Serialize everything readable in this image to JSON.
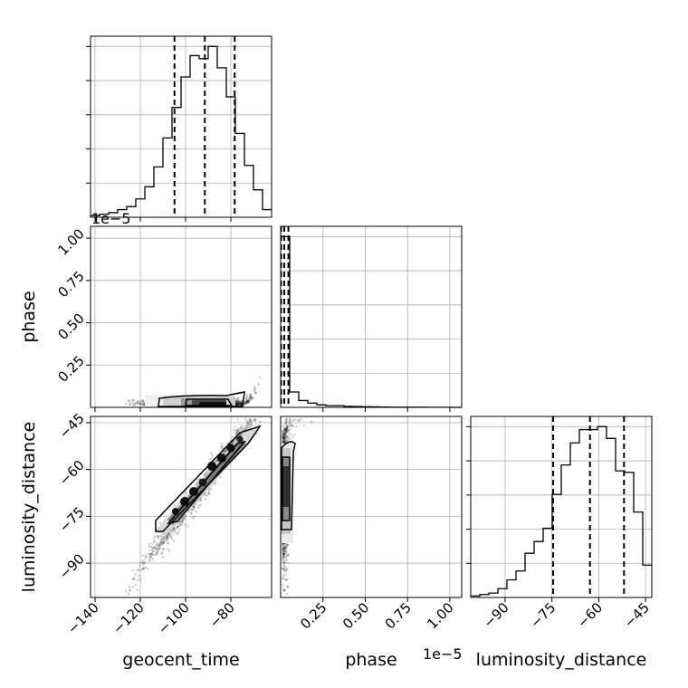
{
  "chart_data": {
    "type": "corner",
    "title": "",
    "parameters": [
      "geocent_time",
      "phase",
      "luminosity_distance"
    ],
    "axis_labels": {
      "geocent_time": "geocent_time",
      "phase": "phase",
      "luminosity_distance": "luminosity_distance"
    },
    "scale_offsets": {
      "phase": "1e−5"
    },
    "ranges": {
      "geocent_time": [
        -142,
        -62
      ],
      "phase_1e-5": [
        0,
        1.07
      ],
      "luminosity_distance": [
        -101,
        -43
      ]
    },
    "ticks": {
      "geocent_time": [
        -140,
        -120,
        -100,
        -80
      ],
      "geocent_time_labels": [
        "−140",
        "−120",
        "−100",
        "−80"
      ],
      "phase_x": [
        0.25,
        0.5,
        0.75,
        1.0
      ],
      "phase_x_labels": [
        "0.25",
        "0.50",
        "0.75",
        "1.00"
      ],
      "phase_y": [
        0.25,
        0.5,
        0.75,
        1.0
      ],
      "phase_y_labels": [
        "0.25",
        "0.50",
        "0.75",
        "1.00"
      ],
      "luminosity_distance": [
        -90,
        -75,
        -60,
        -45
      ],
      "luminosity_distance_labels": [
        "−90",
        "−75",
        "−60",
        "−45"
      ]
    },
    "grid": true,
    "marginals": [
      {
        "parameter": "geocent_time",
        "bin_edges": [
          -142,
          -138,
          -134,
          -130,
          -126,
          -122,
          -118,
          -114,
          -110,
          -106,
          -102,
          -98,
          -94,
          -90,
          -86,
          -82,
          -78,
          -74,
          -70,
          -66,
          -62
        ],
        "counts": [
          1,
          2,
          3,
          5,
          7,
          12,
          20,
          33,
          52,
          72,
          92,
          106,
          104,
          112,
          98,
          79,
          55,
          34,
          18,
          5
        ],
        "quantiles": [
          -104.9,
          -91.5,
          -78.3
        ]
      },
      {
        "parameter": "phase",
        "unit_scale": "1e-5",
        "bin_edges": [
          0,
          0.0535,
          0.107,
          0.1605,
          0.214,
          0.2675,
          0.321,
          0.3745,
          0.428,
          0.4815,
          0.535,
          0.5885,
          0.642,
          0.6955,
          0.749,
          0.8025,
          0.856,
          0.9095,
          0.963,
          1.0165,
          1.07
        ],
        "counts": [
          100,
          9,
          4,
          2.5,
          1.5,
          1,
          1,
          0.6,
          0.5,
          0.4,
          0.3,
          0.2,
          0.15,
          0.1,
          0.1,
          0.1,
          0.05,
          0.05,
          0.05,
          0
        ],
        "quantiles": [
          0.0029,
          0.0215,
          0.0459
        ]
      },
      {
        "parameter": "luminosity_distance",
        "bin_edges": [
          -101,
          -98.1,
          -95.2,
          -92.3,
          -89.4,
          -86.5,
          -83.6,
          -80.7,
          -77.8,
          -74.9,
          -72,
          -69.1,
          -66.2,
          -63.3,
          -60.4,
          -57.5,
          -54.6,
          -51.7,
          -48.8,
          -45.9,
          -43
        ],
        "counts": [
          1,
          2,
          3,
          6,
          12,
          18,
          30,
          38,
          47,
          70,
          90,
          105,
          114,
          114,
          116,
          108,
          86,
          85,
          58,
          22
        ],
        "quantiles": [
          -74.6,
          -62.8,
          -51.9
        ]
      }
    ],
    "pair_plots": [
      {
        "x": "geocent_time",
        "y": "phase",
        "note": "samples concentrated near phase≈0, rising sharply for geocent_time > −75"
      },
      {
        "x": "geocent_time",
        "y": "luminosity_distance",
        "note": "strong positive linear correlation"
      },
      {
        "x": "phase",
        "y": "luminosity_distance",
        "note": "samples concentrated near phase≈0, spreading toward luminosity_distance ≈ −45 as phase grows"
      }
    ]
  }
}
